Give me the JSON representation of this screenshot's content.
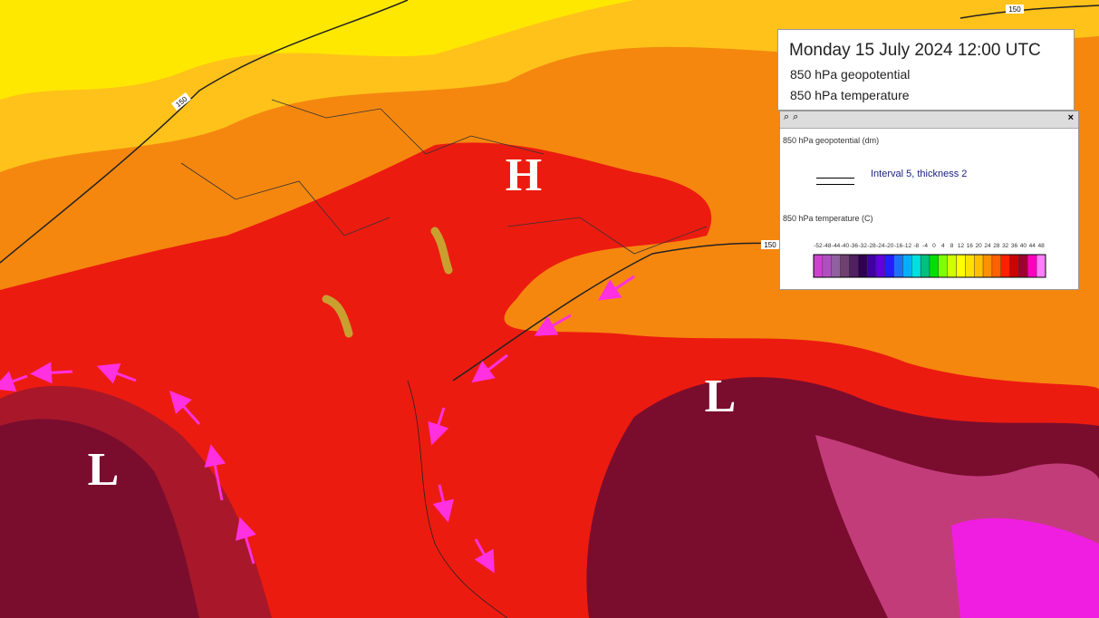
{
  "header": {
    "title": "Monday 15 July 2024 12:00 UTC",
    "line1": "850 hPa geopotential",
    "line2": "850 hPa temperature"
  },
  "legend": {
    "geopotential_title": "850 hPa geopotential (dm)",
    "line_style": "Interval 5, thickness 2",
    "temperature_title": "850 hPa temperature (C)",
    "scale": [
      -52,
      -48,
      -44,
      -40,
      -36,
      -32,
      -28,
      -24,
      -20,
      -16,
      -12,
      -8,
      -4,
      0,
      4,
      8,
      12,
      16,
      20,
      24,
      28,
      32,
      36,
      40,
      44,
      48
    ],
    "colors": [
      "#d040d0",
      "#b050c0",
      "#9060a0",
      "#704070",
      "#502060",
      "#300050",
      "#4000a0",
      "#6000e0",
      "#2020ff",
      "#2070ff",
      "#00b0ff",
      "#00e0e0",
      "#00c080",
      "#00e000",
      "#80ff00",
      "#d0ff00",
      "#ffff00",
      "#ffe000",
      "#ffc000",
      "#ff9000",
      "#ff6000",
      "#ff2000",
      "#d00000",
      "#a00030",
      "#ff00c0",
      "#ff80ff"
    ]
  },
  "map": {
    "pressure_labels": [
      "H",
      "L",
      "L"
    ],
    "contour_labels": [
      "150",
      "150",
      "150"
    ]
  }
}
